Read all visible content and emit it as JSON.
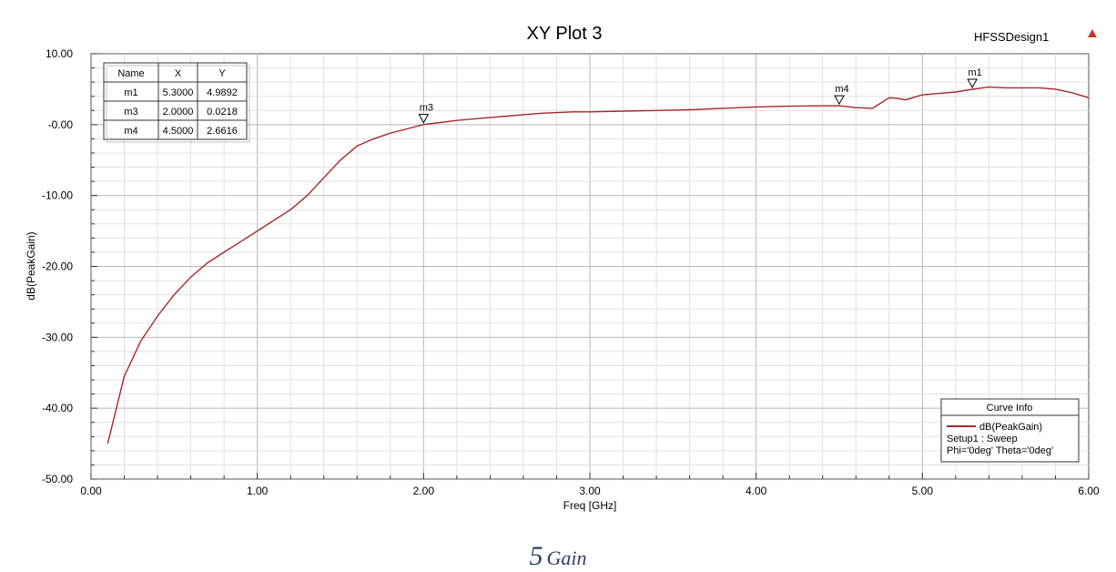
{
  "chart_data": {
    "type": "line",
    "title": "XY Plot 3",
    "design_name": "HFSSDesign1",
    "xlabel": "Freq [GHz]",
    "ylabel": "dB(PeakGain)",
    "xlim": [
      0,
      6
    ],
    "ylim": [
      -50,
      10
    ],
    "x_ticks": [
      "0.00",
      "1.00",
      "2.00",
      "3.00",
      "4.00",
      "5.00",
      "6.00"
    ],
    "y_ticks": [
      "10.00",
      "-0.00",
      "-10.00",
      "-20.00",
      "-30.00",
      "-40.00",
      "-50.00"
    ],
    "grid": true,
    "series": [
      {
        "name": "dB(PeakGain)",
        "color": "#a52a2a",
        "x": [
          0.1,
          0.2,
          0.3,
          0.4,
          0.5,
          0.6,
          0.7,
          0.8,
          0.9,
          1.0,
          1.1,
          1.2,
          1.3,
          1.4,
          1.5,
          1.6,
          1.7,
          1.8,
          1.9,
          2.0,
          2.1,
          2.2,
          2.3,
          2.4,
          2.5,
          2.6,
          2.7,
          2.8,
          2.9,
          3.0,
          3.2,
          3.4,
          3.6,
          3.8,
          4.0,
          4.2,
          4.4,
          4.5,
          4.6,
          4.7,
          4.8,
          4.85,
          4.9,
          5.0,
          5.1,
          5.2,
          5.3,
          5.4,
          5.5,
          5.6,
          5.7,
          5.8,
          5.9,
          6.0
        ],
        "y": [
          -45,
          -35.5,
          -30.5,
          -27,
          -24,
          -21.5,
          -19.5,
          -18,
          -16.5,
          -15,
          -13.5,
          -12,
          -10,
          -7.5,
          -5,
          -3,
          -2,
          -1.2,
          -0.6,
          0.02,
          0.3,
          0.6,
          0.8,
          1.0,
          1.2,
          1.4,
          1.6,
          1.7,
          1.8,
          1.8,
          1.9,
          2.0,
          2.1,
          2.3,
          2.5,
          2.6,
          2.65,
          2.66,
          2.4,
          2.3,
          3.8,
          3.7,
          3.5,
          4.2,
          4.4,
          4.6,
          4.99,
          5.3,
          5.2,
          5.2,
          5.2,
          5.0,
          4.5,
          3.8
        ]
      }
    ],
    "markers": [
      {
        "name": "m1",
        "x": 5.3,
        "y": 4.9892
      },
      {
        "name": "m3",
        "x": 2.0,
        "y": 0.0218
      },
      {
        "name": "m4",
        "x": 4.5,
        "y": 2.6616
      }
    ],
    "marker_table": {
      "headers": [
        "Name",
        "X",
        "Y"
      ],
      "rows": [
        [
          "m1",
          "5.3000",
          "4.9892"
        ],
        [
          "m3",
          "2.0000",
          "0.0218"
        ],
        [
          "m4",
          "4.5000",
          "2.6616"
        ]
      ]
    },
    "curve_info": {
      "title": "Curve Info",
      "series_label": "dB(PeakGain)",
      "line2": "Setup1 : Sweep",
      "line3": "Phi='0deg' Theta='0deg'"
    }
  },
  "caption": {
    "number": "5",
    "text": "Gain"
  }
}
